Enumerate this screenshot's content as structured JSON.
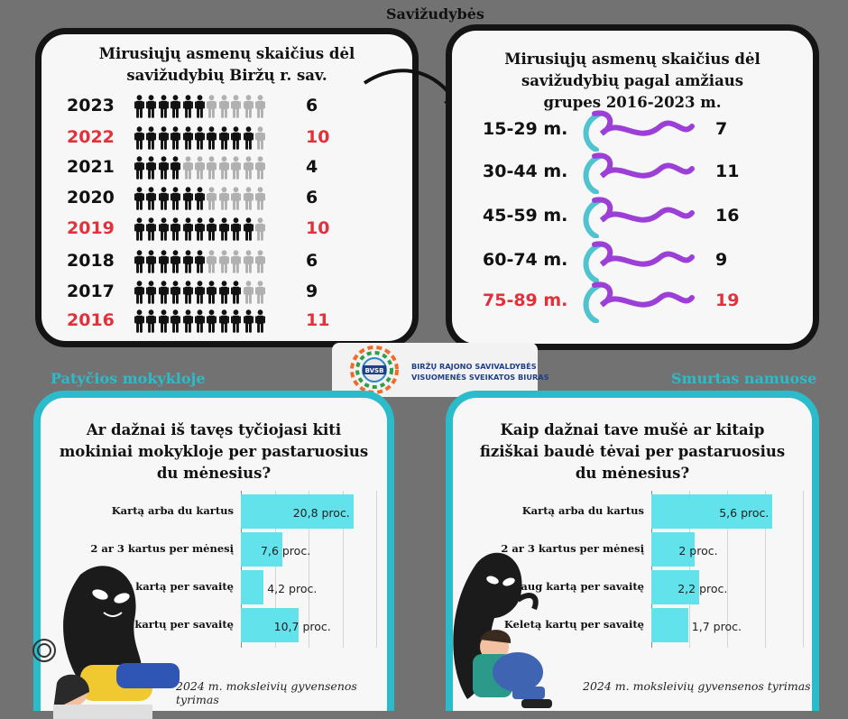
{
  "header": {
    "title": "Savižudybės",
    "left_section": "Patyčios mokykloje",
    "right_section": "Smurtas namuose"
  },
  "logo": {
    "line1": "BIRŽŲ RAJONO SAVIVALDYBĖS",
    "line2": "VISUOMENĖS SVEIKATOS BIURAS",
    "badge_text": "BVSB"
  },
  "colors": {
    "highlight": "#e2313b",
    "bar": "#62e2ea",
    "teal_border": "#2bbccc",
    "ribbon_teal": "#4fc3cf",
    "ribbon_purple": "#9c3fd6"
  },
  "chart_data": [
    {
      "type": "table",
      "title": "Mirusiųjų asmenų skaičius dėl savižudybių Biržų r. sav.",
      "categories": [
        "2023",
        "2022",
        "2021",
        "2020",
        "2019",
        "2018",
        "2017",
        "2016"
      ],
      "values": [
        6,
        10,
        4,
        6,
        10,
        6,
        9,
        11
      ],
      "highlighted": [
        "2022",
        "2019",
        "2016"
      ],
      "icon_total": 11
    },
    {
      "type": "table",
      "title": "Mirusiųjų asmenų skaičius dėl savižudybių pagal amžiaus grupes 2016-2023 m.",
      "categories": [
        "15-29 m.",
        "30-44 m.",
        "45-59 m.",
        "60-74 m.",
        "75-89 m."
      ],
      "values": [
        7,
        11,
        16,
        9,
        19
      ],
      "highlighted": [
        "75-89 m."
      ]
    },
    {
      "type": "bar",
      "orientation": "horizontal",
      "title": "Ar dažnai iš tavęs tyčiojasi kiti mokiniai mokykloje per pastaruosius du mėnesius?",
      "categories": [
        "Kartą arba du kartus",
        "2 ar 3 kartus per mėnesį",
        "Maždaug kartą per savaitę",
        "Keletą kartų per savaitę"
      ],
      "values": [
        20.8,
        7.6,
        4.2,
        10.7
      ],
      "value_labels": [
        "20,8 proc.",
        "7,6 proc.",
        "4,2 proc.",
        "10,7 proc."
      ],
      "xlim": [
        0,
        25
      ],
      "source": "2024 m. moksleivių gyvensenos tyrimas"
    },
    {
      "type": "bar",
      "orientation": "horizontal",
      "title": "Kaip dažnai tave mušė ar kitaip fiziškai baudė tėvai per pastaruosius du mėnesius?",
      "categories": [
        "Kartą arba du kartus",
        "2 ar 3 kartus per mėnesį",
        "Maždaug kartą per savaitę",
        "Keletą kartų per savaitę"
      ],
      "values": [
        5.6,
        2,
        2.2,
        1.7
      ],
      "value_labels": [
        "5,6 proc.",
        "2 proc.",
        "2,2 proc.",
        "1,7 proc."
      ],
      "xlim": [
        0,
        7
      ],
      "source": "2024 m. moksleivių gyvensenos tyrimas"
    }
  ]
}
